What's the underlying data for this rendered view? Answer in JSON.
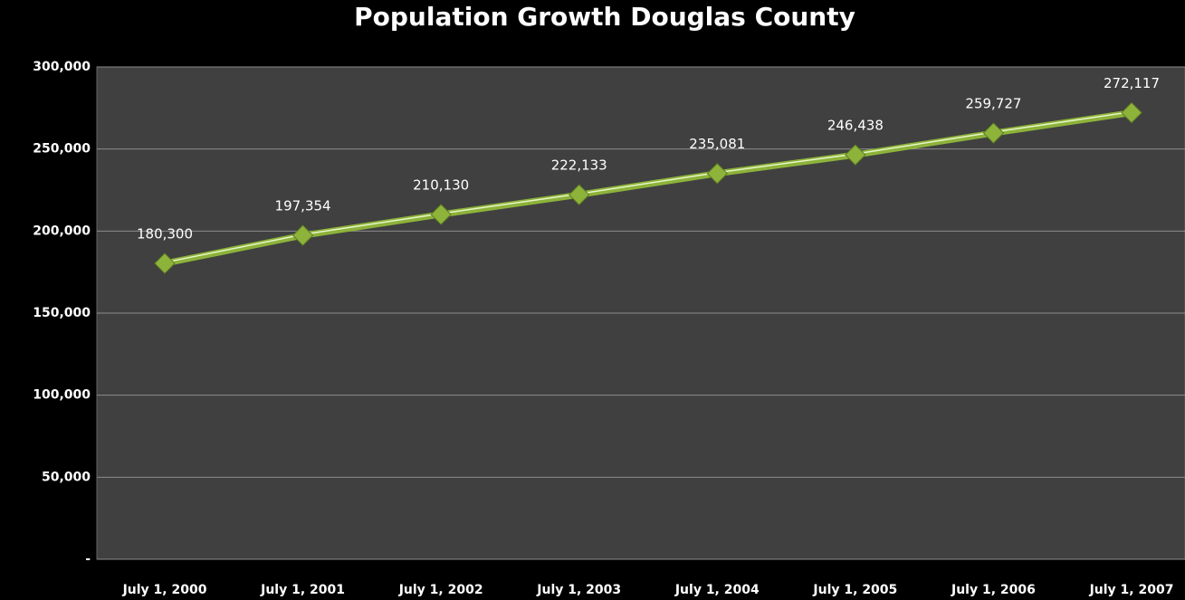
{
  "chart_data": {
    "type": "line",
    "title": "Population Growth Douglas County",
    "categories": [
      "July 1, 2000",
      "July 1, 2001",
      "July 1, 2002",
      "July 1, 2003",
      "July 1, 2004",
      "July 1, 2005",
      "July 1, 2006",
      "July 1, 2007"
    ],
    "series": [
      {
        "color": "#8db33a",
        "values": [
          180300,
          197354,
          210130,
          222133,
          235081,
          246438,
          259727,
          272117
        ],
        "value_labels": [
          "180,300",
          "197,354",
          "210,130",
          "222,133",
          "235,081",
          "246,438",
          "259,727",
          "272,117"
        ]
      }
    ],
    "ylim": [
      0,
      300000
    ],
    "yticks": [
      {
        "value": 0,
        "label": "-"
      },
      {
        "value": 50000,
        "label": "50,000"
      },
      {
        "value": 100000,
        "label": "100,000"
      },
      {
        "value": 150000,
        "label": "150,000"
      },
      {
        "value": 200000,
        "label": "200,000"
      },
      {
        "value": 250000,
        "label": "250,000"
      },
      {
        "value": 300000,
        "label": "300,000"
      }
    ],
    "grid": true
  }
}
